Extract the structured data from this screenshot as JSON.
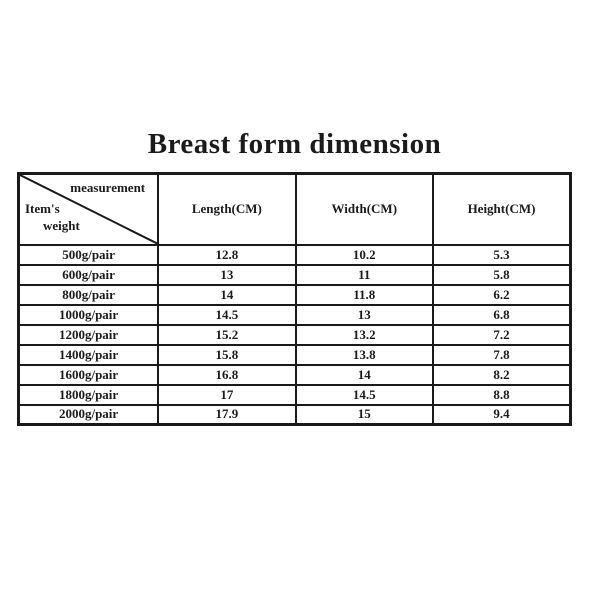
{
  "title": "Breast form dimension",
  "table": {
    "corner": {
      "top_label": "measurement",
      "bottom_label_line1": "Item's",
      "bottom_label_line2": "weight"
    },
    "columns": [
      "Length(CM)",
      "Width(CM)",
      "Height(CM)"
    ],
    "rows": [
      {
        "item": "500g/pair",
        "length": "12.8",
        "width": "10.2",
        "height": "5.3"
      },
      {
        "item": "600g/pair",
        "length": "13",
        "width": "11",
        "height": "5.8"
      },
      {
        "item": "800g/pair",
        "length": "14",
        "width": "11.8",
        "height": "6.2"
      },
      {
        "item": "1000g/pair",
        "length": "14.5",
        "width": "13",
        "height": "6.8"
      },
      {
        "item": "1200g/pair",
        "length": "15.2",
        "width": "13.2",
        "height": "7.2"
      },
      {
        "item": "1400g/pair",
        "length": "15.8",
        "width": "13.8",
        "height": "7.8"
      },
      {
        "item": "1600g/pair",
        "length": "16.8",
        "width": "14",
        "height": "8.2"
      },
      {
        "item": "1800g/pair",
        "length": "17",
        "width": "14.5",
        "height": "8.8"
      },
      {
        "item": "2000g/pair",
        "length": "17.9",
        "width": "15",
        "height": "9.4"
      }
    ]
  },
  "colors": {
    "text": "#1b1b1b",
    "border": "#1a1a1a",
    "background": "#ffffff"
  }
}
